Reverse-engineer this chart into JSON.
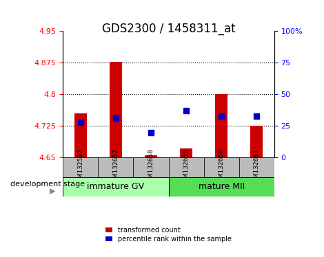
{
  "title": "GDS2300 / 1458311_at",
  "samples": [
    "GSM132592",
    "GSM132657",
    "GSM132658",
    "GSM132659",
    "GSM132660",
    "GSM132661"
  ],
  "bar_values": [
    4.755,
    4.878,
    4.655,
    4.672,
    4.8,
    4.725
  ],
  "bar_bottom": 4.65,
  "percentile_values": [
    28,
    31,
    20,
    37,
    33,
    33
  ],
  "ylim_left": [
    4.65,
    4.95
  ],
  "ylim_right": [
    0,
    100
  ],
  "yticks_left": [
    4.65,
    4.725,
    4.8,
    4.875,
    4.95
  ],
  "yticks_right": [
    0,
    25,
    50,
    75,
    100
  ],
  "ytick_labels_left": [
    "4.65",
    "4.725",
    "4.8",
    "4.875",
    "4.95"
  ],
  "ytick_labels_right": [
    "0",
    "25",
    "50",
    "75",
    "100%"
  ],
  "hlines": [
    4.725,
    4.8,
    4.875
  ],
  "bar_color": "#cc0000",
  "dot_color": "#0000cc",
  "bar_width": 0.35,
  "dot_size": 40,
  "group1_label": "immature GV",
  "group2_label": "mature MII",
  "group1_color": "#aaffaa",
  "group2_color": "#55dd55",
  "group_bar_color": "#bbbbbb",
  "xlabel_left": "development stage",
  "legend_bar_label": "transformed count",
  "legend_dot_label": "percentile rank within the sample",
  "title_fontsize": 12,
  "tick_fontsize": 8,
  "label_fontsize": 8,
  "group_fontsize": 9
}
